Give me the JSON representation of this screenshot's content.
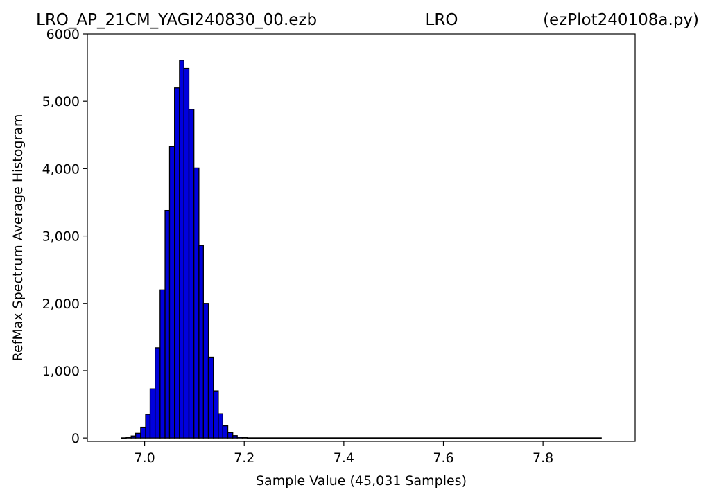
{
  "header": {
    "left": "LRO_AP_21CM_YAGI240830_00.ezb",
    "center": "LRO",
    "right": "(ezPlot240108a.py)"
  },
  "chart_data": {
    "type": "bar",
    "title": "",
    "xlabel": "Sample Value (45,031 Samples)",
    "ylabel": "RefMax Spectrum Average Histogram",
    "xlim": [
      6.885,
      7.985
    ],
    "ylim": [
      -50,
      6000
    ],
    "xticks": [
      7.0,
      7.2,
      7.4,
      7.6,
      7.8
    ],
    "xtick_labels": [
      "7.0",
      "7.2",
      "7.4",
      "7.6",
      "7.8"
    ],
    "yticks": [
      0,
      1000,
      2000,
      3000,
      4000,
      5000,
      6000
    ],
    "ytick_labels": [
      "0",
      "1,000",
      "2,000",
      "3,000",
      "4,000",
      "5,000",
      "6000"
    ],
    "grid": false,
    "bar_color": "#0000dd",
    "edge_color": "#000000",
    "series": [
      {
        "bins": [
          {
            "x0": 6.953,
            "x1": 6.963,
            "value": 2
          },
          {
            "x0": 6.963,
            "x1": 6.973,
            "value": 8
          },
          {
            "x0": 6.973,
            "x1": 6.982,
            "value": 30
          },
          {
            "x0": 6.982,
            "x1": 6.992,
            "value": 70
          },
          {
            "x0": 6.992,
            "x1": 7.002,
            "value": 160
          },
          {
            "x0": 7.002,
            "x1": 7.011,
            "value": 350
          },
          {
            "x0": 7.011,
            "x1": 7.021,
            "value": 730
          },
          {
            "x0": 7.021,
            "x1": 7.031,
            "value": 1340
          },
          {
            "x0": 7.031,
            "x1": 7.041,
            "value": 2200
          },
          {
            "x0": 7.041,
            "x1": 7.05,
            "value": 3380
          },
          {
            "x0": 7.05,
            "x1": 7.06,
            "value": 4330
          },
          {
            "x0": 7.06,
            "x1": 7.07,
            "value": 5200
          },
          {
            "x0": 7.07,
            "x1": 7.079,
            "value": 5610
          },
          {
            "x0": 7.079,
            "x1": 7.089,
            "value": 5490
          },
          {
            "x0": 7.089,
            "x1": 7.099,
            "value": 4880
          },
          {
            "x0": 7.099,
            "x1": 7.109,
            "value": 4010
          },
          {
            "x0": 7.109,
            "x1": 7.118,
            "value": 2860
          },
          {
            "x0": 7.118,
            "x1": 7.128,
            "value": 2000
          },
          {
            "x0": 7.128,
            "x1": 7.138,
            "value": 1200
          },
          {
            "x0": 7.138,
            "x1": 7.148,
            "value": 700
          },
          {
            "x0": 7.148,
            "x1": 7.157,
            "value": 360
          },
          {
            "x0": 7.157,
            "x1": 7.167,
            "value": 180
          },
          {
            "x0": 7.167,
            "x1": 7.177,
            "value": 80
          },
          {
            "x0": 7.177,
            "x1": 7.186,
            "value": 35
          },
          {
            "x0": 7.186,
            "x1": 7.196,
            "value": 15
          },
          {
            "x0": 7.196,
            "x1": 7.206,
            "value": 6
          },
          {
            "x0": 7.206,
            "x1": 7.917,
            "value": 2
          }
        ]
      }
    ]
  }
}
